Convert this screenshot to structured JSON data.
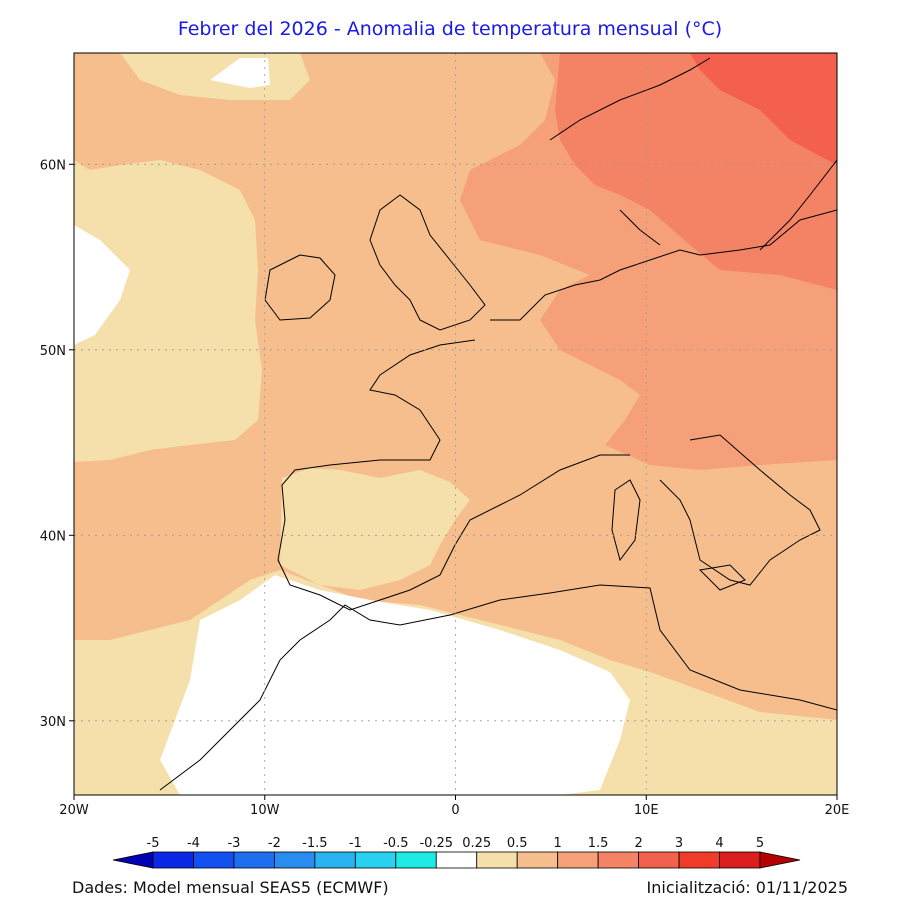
{
  "title": "Febrer del 2026 - Anomalia de temperatura mensual (°C)",
  "footer": {
    "source": "Dades: Model mensual SEAS5 (ECMWF)",
    "init": "Inicialització: 01/11/2025"
  },
  "map": {
    "lon_range": [
      -20,
      20
    ],
    "lat_range": [
      26,
      66
    ],
    "lon_ticks": [
      {
        "value": -20,
        "label": "20W"
      },
      {
        "value": -10,
        "label": "10W"
      },
      {
        "value": 0,
        "label": "0"
      },
      {
        "value": 10,
        "label": "10E"
      },
      {
        "value": 20,
        "label": "20E"
      }
    ],
    "lat_ticks": [
      {
        "value": 30,
        "label": "30N"
      },
      {
        "value": 40,
        "label": "40N"
      },
      {
        "value": 50,
        "label": "50N"
      },
      {
        "value": 60,
        "label": "60N"
      }
    ],
    "grid": true,
    "colors": {
      "anomaly_0_25_0_5": "#f5dfaa",
      "anomaly_0_5_1": "#f5be8c",
      "anomaly_1_1_5": "#f5a078",
      "anomaly_1_5_2": "#f48264",
      "anomaly_2_3": "#f3604d",
      "neutral": "#ffffff"
    }
  },
  "legend": {
    "labels": [
      "-5",
      "-4",
      "-3",
      "-2",
      "-1.5",
      "-1",
      "-0.5",
      "-0.25",
      "0.25",
      "0.5",
      "1",
      "1.5",
      "2",
      "3",
      "4",
      "5"
    ],
    "colors": [
      "#0000b4",
      "#0a28e6",
      "#1450f0",
      "#1e6ef0",
      "#288cf0",
      "#28b4f0",
      "#28d2f0",
      "#1eebe6",
      "#ffffff",
      "#f5dfaa",
      "#f5be8c",
      "#f5a078",
      "#f48264",
      "#f3604d",
      "#f03c28",
      "#dc1e1e",
      "#b40000"
    ]
  }
}
